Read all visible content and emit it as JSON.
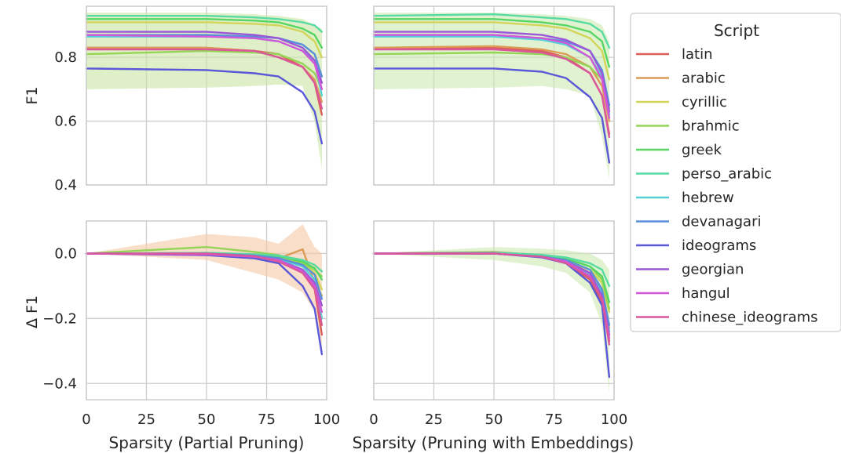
{
  "chart_data": {
    "type": "line",
    "x": [
      0,
      50,
      70,
      80,
      90,
      95,
      98
    ],
    "xlim": [
      0,
      100
    ],
    "xticks": [
      0,
      25,
      50,
      75,
      100
    ],
    "grid": true,
    "legend": {
      "title": "Script",
      "placement": "outside-right"
    },
    "panels": [
      {
        "id": "f1-partial",
        "ylabel": "F1",
        "xlabel": "",
        "ylim": [
          0.4,
          0.96
        ],
        "yticks": [
          0.4,
          0.6,
          0.8
        ],
        "ytick_labels": [
          "0.4",
          "0.6",
          "0.8"
        ],
        "band": {
          "lower": [
            0.7,
            0.705,
            0.71,
            0.715,
            0.71,
            0.6,
            0.45
          ],
          "upper": [
            0.94,
            0.94,
            0.935,
            0.93,
            0.92,
            0.9,
            0.89
          ]
        },
        "series": [
          {
            "name": "latin",
            "values": [
              0.83,
              0.83,
              0.82,
              0.81,
              0.77,
              0.72,
              0.62
            ]
          },
          {
            "name": "arabic",
            "values": [
              0.83,
              0.83,
              0.82,
              0.8,
              0.77,
              0.73,
              0.66
            ]
          },
          {
            "name": "cyrillic",
            "values": [
              0.91,
              0.91,
              0.905,
              0.9,
              0.88,
              0.85,
              0.8
            ]
          },
          {
            "name": "brahmic",
            "values": [
              0.81,
              0.82,
              0.815,
              0.81,
              0.78,
              0.75,
              0.7
            ]
          },
          {
            "name": "greek",
            "values": [
              0.92,
              0.92,
              0.915,
              0.91,
              0.89,
              0.87,
              0.83
            ]
          },
          {
            "name": "perso_arabic",
            "values": [
              0.93,
              0.93,
              0.925,
              0.92,
              0.91,
              0.9,
              0.88
            ]
          },
          {
            "name": "hebrew",
            "values": [
              0.865,
              0.865,
              0.86,
              0.85,
              0.82,
              0.79,
              0.68
            ]
          },
          {
            "name": "devanagari",
            "values": [
              0.87,
              0.87,
              0.865,
              0.86,
              0.84,
              0.81,
              0.74
            ]
          },
          {
            "name": "ideograms",
            "values": [
              0.765,
              0.76,
              0.75,
              0.74,
              0.69,
              0.63,
              0.53
            ]
          },
          {
            "name": "georgian",
            "values": [
              0.88,
              0.88,
              0.87,
              0.86,
              0.83,
              0.79,
              0.72
            ]
          },
          {
            "name": "hangul",
            "values": [
              0.87,
              0.865,
              0.86,
              0.85,
              0.82,
              0.78,
              0.7
            ]
          },
          {
            "name": "chinese_ideograms",
            "values": [
              0.825,
              0.825,
              0.82,
              0.8,
              0.77,
              0.72,
              0.64
            ]
          }
        ]
      },
      {
        "id": "f1-embeddings",
        "ylabel": "",
        "xlabel": "",
        "ylim": [
          0.4,
          0.96
        ],
        "yticks": [
          0.4,
          0.6,
          0.8
        ],
        "ytick_labels": [],
        "band": {
          "lower": [
            0.7,
            0.705,
            0.71,
            0.7,
            0.68,
            0.55,
            0.42
          ],
          "upper": [
            0.94,
            0.94,
            0.935,
            0.93,
            0.92,
            0.9,
            0.85
          ]
        },
        "series": [
          {
            "name": "latin",
            "values": [
              0.83,
              0.83,
              0.82,
              0.8,
              0.75,
              0.68,
              0.56
            ]
          },
          {
            "name": "arabic",
            "values": [
              0.83,
              0.835,
              0.825,
              0.81,
              0.77,
              0.71,
              0.6
            ]
          },
          {
            "name": "cyrillic",
            "values": [
              0.91,
              0.91,
              0.9,
              0.89,
              0.86,
              0.82,
              0.73
            ]
          },
          {
            "name": "brahmic",
            "values": [
              0.81,
              0.815,
              0.81,
              0.8,
              0.77,
              0.73,
              0.64
            ]
          },
          {
            "name": "greek",
            "values": [
              0.92,
              0.92,
              0.91,
              0.9,
              0.88,
              0.85,
              0.77
            ]
          },
          {
            "name": "perso_arabic",
            "values": [
              0.93,
              0.935,
              0.925,
              0.92,
              0.905,
              0.88,
              0.83
            ]
          },
          {
            "name": "hebrew",
            "values": [
              0.865,
              0.865,
              0.855,
              0.84,
              0.8,
              0.74,
              0.62
            ]
          },
          {
            "name": "devanagari",
            "values": [
              0.87,
              0.87,
              0.86,
              0.85,
              0.82,
              0.76,
              0.65
            ]
          },
          {
            "name": "ideograms",
            "values": [
              0.765,
              0.765,
              0.755,
              0.735,
              0.675,
              0.61,
              0.47
            ]
          },
          {
            "name": "georgian",
            "values": [
              0.88,
              0.88,
              0.87,
              0.855,
              0.82,
              0.75,
              0.63
            ]
          },
          {
            "name": "hangul",
            "values": [
              0.87,
              0.87,
              0.86,
              0.845,
              0.8,
              0.73,
              0.61
            ]
          },
          {
            "name": "chinese_ideograms",
            "values": [
              0.825,
              0.825,
              0.815,
              0.795,
              0.75,
              0.68,
              0.55
            ]
          }
        ]
      },
      {
        "id": "delta-partial",
        "ylabel": "Δ F1",
        "xlabel": "Sparsity (Partial Pruning)",
        "ylim": [
          -0.45,
          0.1
        ],
        "yticks": [
          -0.4,
          -0.2,
          0.0
        ],
        "ytick_labels": [
          "−0.4",
          "−0.2",
          "0.0"
        ],
        "band": {
          "lower": [
            0.0,
            -0.02,
            -0.06,
            -0.08,
            -0.12,
            -0.18,
            -0.32
          ],
          "upper": [
            0.0,
            0.06,
            0.05,
            0.03,
            0.09,
            0.02,
            0.0
          ]
        },
        "series": [
          {
            "name": "latin",
            "values": [
              0.0,
              -0.002,
              -0.01,
              -0.02,
              -0.06,
              -0.11,
              -0.25
            ]
          },
          {
            "name": "arabic",
            "values": [
              0.0,
              -0.005,
              -0.01,
              -0.015,
              0.013,
              -0.09,
              -0.13
            ]
          },
          {
            "name": "cyrillic",
            "values": [
              0.0,
              -0.003,
              -0.01,
              -0.015,
              -0.03,
              -0.06,
              -0.11
            ]
          },
          {
            "name": "brahmic",
            "values": [
              0.0,
              0.02,
              0.005,
              -0.005,
              -0.03,
              -0.05,
              -0.07
            ]
          },
          {
            "name": "greek",
            "values": [
              0.0,
              0.002,
              -0.003,
              -0.008,
              -0.025,
              -0.045,
              -0.08
            ]
          },
          {
            "name": "perso_arabic",
            "values": [
              0.0,
              0.002,
              -0.002,
              -0.006,
              -0.02,
              -0.035,
              -0.055
            ]
          },
          {
            "name": "hebrew",
            "values": [
              0.0,
              0.0,
              -0.008,
              -0.018,
              -0.04,
              -0.08,
              -0.2
            ]
          },
          {
            "name": "devanagari",
            "values": [
              0.0,
              0.0,
              -0.006,
              -0.014,
              -0.035,
              -0.065,
              -0.14
            ]
          },
          {
            "name": "ideograms",
            "values": [
              0.0,
              -0.005,
              -0.015,
              -0.03,
              -0.1,
              -0.17,
              -0.31
            ]
          },
          {
            "name": "georgian",
            "values": [
              0.0,
              -0.002,
              -0.01,
              -0.02,
              -0.05,
              -0.09,
              -0.16
            ]
          },
          {
            "name": "hangul",
            "values": [
              0.0,
              -0.003,
              -0.01,
              -0.02,
              -0.055,
              -0.1,
              -0.18
            ]
          },
          {
            "name": "chinese_ideograms",
            "values": [
              0.0,
              0.0,
              -0.008,
              -0.025,
              -0.06,
              -0.11,
              -0.22
            ]
          }
        ]
      },
      {
        "id": "delta-embeddings",
        "ylabel": "",
        "xlabel": "Sparsity (Pruning with Embeddings)",
        "ylim": [
          -0.45,
          0.1
        ],
        "yticks": [
          -0.4,
          -0.2,
          0.0
        ],
        "ytick_labels": [],
        "band": {
          "lower": [
            0.0,
            -0.02,
            -0.04,
            -0.06,
            -0.12,
            -0.22,
            -0.43
          ],
          "upper": [
            0.0,
            0.02,
            0.015,
            0.01,
            0.0,
            -0.02,
            -0.05
          ]
        },
        "series": [
          {
            "name": "latin",
            "values": [
              0.0,
              0.0,
              -0.01,
              -0.03,
              -0.08,
              -0.15,
              -0.27
            ]
          },
          {
            "name": "arabic",
            "values": [
              0.0,
              0.005,
              -0.005,
              -0.02,
              -0.06,
              -0.12,
              -0.23
            ]
          },
          {
            "name": "cyrillic",
            "values": [
              0.0,
              0.002,
              -0.008,
              -0.02,
              -0.05,
              -0.09,
              -0.18
            ]
          },
          {
            "name": "brahmic",
            "values": [
              0.0,
              0.003,
              -0.005,
              -0.015,
              -0.04,
              -0.08,
              -0.17
            ]
          },
          {
            "name": "greek",
            "values": [
              0.0,
              0.002,
              -0.006,
              -0.016,
              -0.04,
              -0.07,
              -0.15
            ]
          },
          {
            "name": "perso_arabic",
            "values": [
              0.0,
              0.003,
              -0.004,
              -0.012,
              -0.03,
              -0.05,
              -0.1
            ]
          },
          {
            "name": "hebrew",
            "values": [
              0.0,
              0.0,
              -0.01,
              -0.025,
              -0.065,
              -0.12,
              -0.24
            ]
          },
          {
            "name": "devanagari",
            "values": [
              0.0,
              0.0,
              -0.01,
              -0.02,
              -0.05,
              -0.11,
              -0.22
            ]
          },
          {
            "name": "ideograms",
            "values": [
              0.0,
              0.0,
              -0.012,
              -0.03,
              -0.09,
              -0.16,
              -0.38
            ]
          },
          {
            "name": "georgian",
            "values": [
              0.0,
              0.0,
              -0.01,
              -0.025,
              -0.06,
              -0.13,
              -0.25
            ]
          },
          {
            "name": "hangul",
            "values": [
              0.0,
              0.0,
              -0.01,
              -0.025,
              -0.07,
              -0.14,
              -0.26
            ]
          },
          {
            "name": "chinese_ideograms",
            "values": [
              0.0,
              0.0,
              -0.01,
              -0.03,
              -0.075,
              -0.14,
              -0.28
            ]
          }
        ]
      }
    ],
    "colors": {
      "latin": "#db5f57",
      "arabic": "#dc9b56",
      "cyrillic": "#d3d45a",
      "brahmic": "#94d557",
      "greek": "#57d663",
      "perso_arabic": "#57dba2",
      "hebrew": "#57cfd9",
      "devanagari": "#578fd9",
      "ideograms": "#5a57d9",
      "georgian": "#9b57d9",
      "hangul": "#d357d9",
      "chinese_ideograms": "#d9579a"
    },
    "band_colors": {
      "f1-partial": "#c9e4a2",
      "f1-embeddings": "#cdeab0",
      "delta-partial": "#f5c8a6",
      "delta-embeddings": "#cdeab0"
    }
  }
}
